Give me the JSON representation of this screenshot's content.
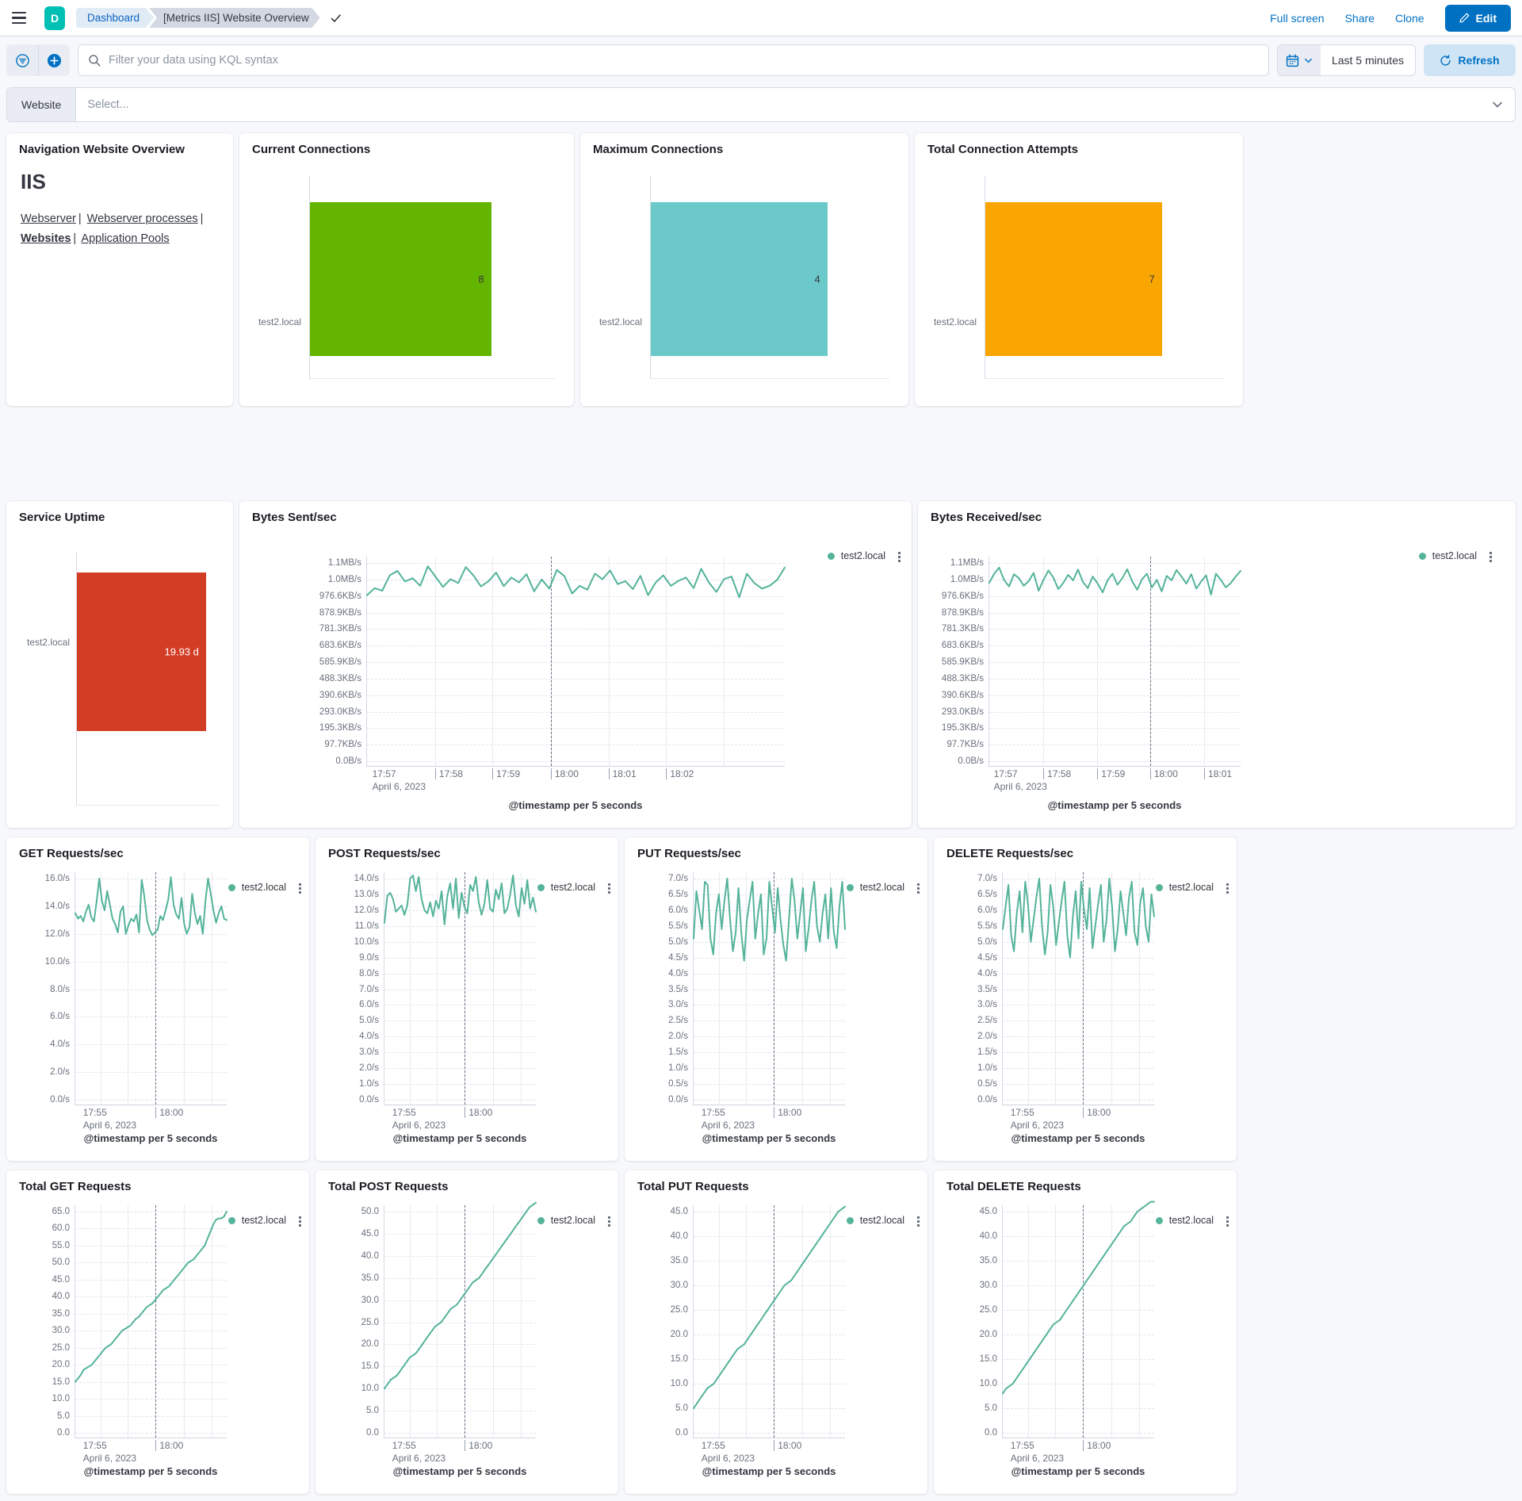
{
  "header": {
    "logo_letter": "D",
    "breadcrumb_dashboard": "Dashboard",
    "breadcrumb_page": "[Metrics IIS] Website Overview",
    "link_fullscreen": "Full screen",
    "link_share": "Share",
    "link_clone": "Clone",
    "edit_label": "Edit"
  },
  "filter_bar": {
    "kql_placeholder": "Filter your data using KQL syntax",
    "time_range": "Last 5 minutes",
    "refresh_label": "Refresh"
  },
  "website_selector": {
    "label": "Website",
    "placeholder": "Select..."
  },
  "nav_panel": {
    "title": "Navigation Website Overview",
    "heading": "IIS",
    "link_webserver": "Webserver",
    "link_webserver_processes": "Webserver processes",
    "link_websites": "Websites",
    "link_application_pools": "Application Pools"
  },
  "bar_panels": [
    {
      "title": "Current Connections",
      "label": "test2.local",
      "value": "8",
      "color": "#64b500"
    },
    {
      "title": "Maximum Connections",
      "label": "test2.local",
      "value": "4",
      "color": "#6bc9c9"
    },
    {
      "title": "Total Connection Attempts",
      "label": "test2.local",
      "value": "7",
      "color": "#f9a602"
    }
  ],
  "uptime_panel": {
    "title": "Service Uptime",
    "label": "test2.local",
    "value": "19.93 d",
    "color": "#d43d25"
  },
  "chart_data": [
    {
      "type": "line",
      "title": "Bytes Sent/sec",
      "legend": "test2.local",
      "color": "#54b399",
      "ylabel": "",
      "xlabel": "@timestamp per 5 seconds",
      "x_title": "@timestamp per 5 seconds",
      "x_date": "April 6, 2023",
      "y_ticks": [
        "1.1MB/s",
        "1.0MB/s",
        "976.6KB/s",
        "878.9KB/s",
        "781.3KB/s",
        "683.6KB/s",
        "585.9KB/s",
        "488.3KB/s",
        "390.6KB/s",
        "293.0KB/s",
        "195.3KB/s",
        "97.7KB/s",
        "0.0B/s"
      ],
      "y_top_value": 1200000,
      "x_labels": [
        {
          "t": "17:57",
          "f": 0.005
        },
        {
          "t": "17:58",
          "f": 0.163
        },
        {
          "t": "17:59",
          "f": 0.3
        },
        {
          "t": "18:00",
          "f": 0.44
        },
        {
          "t": "18:01",
          "f": 0.578
        },
        {
          "t": "18:02",
          "f": 0.716
        }
      ],
      "x_gridlines": [
        0.163,
        0.3,
        0.44,
        0.578,
        0.716,
        0.854
      ],
      "annotation_f": 0.44,
      "values": [
        1005000,
        1048000,
        1032000,
        1125000,
        1152000,
        1088000,
        1108000,
        1062000,
        1180000,
        1118000,
        1055000,
        1102000,
        1078000,
        1175000,
        1125000,
        1058000,
        1090000,
        1142000,
        1060000,
        1112000,
        1082000,
        1132000,
        1028000,
        1100000,
        1045000,
        1158000,
        1120000,
        1015000,
        1062000,
        1038000,
        1135000,
        1102000,
        1155000,
        1072000,
        1090000,
        1042000,
        1122000,
        1005000,
        1082000,
        1125000,
        1062000,
        1092000,
        1112000,
        1048000,
        1165000,
        1082000,
        1025000,
        1102000,
        1118000,
        992000,
        1135000,
        1078000,
        1045000,
        1062000,
        1098000,
        1172000
      ]
    },
    {
      "type": "line",
      "title": "Bytes Received/sec",
      "legend": "test2.local",
      "color": "#54b399",
      "ylabel": "",
      "xlabel": "@timestamp per 5 seconds",
      "x_title": "@timestamp per 5 seconds",
      "x_date": "April 6, 2023",
      "y_ticks": [
        "1.1MB/s",
        "1.0MB/s",
        "976.6KB/s",
        "878.9KB/s",
        "781.3KB/s",
        "683.6KB/s",
        "585.9KB/s",
        "488.3KB/s",
        "390.6KB/s",
        "293.0KB/s",
        "195.3KB/s",
        "97.7KB/s",
        "0.0B/s"
      ],
      "y_top_value": 1200000,
      "x_labels": [
        {
          "t": "17:57",
          "f": 0.005
        },
        {
          "t": "17:58",
          "f": 0.215
        },
        {
          "t": "17:59",
          "f": 0.43
        },
        {
          "t": "18:00",
          "f": 0.64
        },
        {
          "t": "18:01",
          "f": 0.855
        }
      ],
      "x_gridlines": [
        0.215,
        0.43,
        0.64,
        0.855
      ],
      "annotation_f": 0.64,
      "values": [
        1080000,
        1135000,
        1172000,
        1098000,
        1058000,
        1132000,
        1108000,
        1062000,
        1090000,
        1140000,
        1032000,
        1098000,
        1155000,
        1112000,
        1042000,
        1078000,
        1128000,
        1095000,
        1160000,
        1085000,
        1048000,
        1118000,
        1075000,
        1022000,
        1095000,
        1135000,
        1068000,
        1108000,
        1162000,
        1088000,
        1038000,
        1102000,
        1135000,
        1052000,
        1098000,
        1028000,
        1122000,
        1095000,
        1158000,
        1118000,
        1075000,
        1132000,
        1045000,
        1088000,
        1125000,
        1008000,
        1135000,
        1098000,
        1052000,
        1078000,
        1118000,
        1152000
      ]
    },
    {
      "type": "line",
      "title": "GET Requests/sec",
      "legend": "test2.local",
      "color": "#54b399",
      "ylabel": "",
      "xlabel": "@timestamp per 5 seconds",
      "x_title": "@timestamp per 5 seconds",
      "x_date": "April 6, 2023",
      "y_ticks": [
        "16.0/s",
        "14.0/s",
        "12.0/s",
        "10.0/s",
        "8.0/s",
        "6.0/s",
        "4.0/s",
        "2.0/s",
        "0.0/s"
      ],
      "y_top_value": 16,
      "x_labels": [
        {
          "t": "17:55",
          "f": 0.03
        },
        {
          "t": "18:00",
          "f": 0.53
        }
      ],
      "x_gridlines": [
        0.165,
        0.345,
        0.53,
        0.715,
        0.9
      ],
      "annotation_f": 0.53,
      "values": [
        13.5,
        13.1,
        13.3,
        12.9,
        13.6,
        14.1,
        13.2,
        12.9,
        14.3,
        16.0,
        14.4,
        13.7,
        15.1,
        14.1,
        13.1,
        12.7,
        12.1,
        13.6,
        14.0,
        12.0,
        12.6,
        13.1,
        12.9,
        13.4,
        12.1,
        15.9,
        14.7,
        13.0,
        12.3,
        11.9,
        12.1,
        12.3,
        13.3,
        13.0,
        13.7,
        14.5,
        16.1,
        14.1,
        13.4,
        13.1,
        14.6,
        12.7,
        12.0,
        12.5,
        14.9,
        13.5,
        12.7,
        13.3,
        12.0,
        14.4,
        16.0,
        14.9,
        13.7,
        12.8,
        13.5,
        14.0,
        13.1,
        13.0
      ]
    },
    {
      "type": "line",
      "title": "POST Requests/sec",
      "legend": "test2.local",
      "color": "#54b399",
      "ylabel": "",
      "xlabel": "@timestamp per 5 seconds",
      "x_title": "@timestamp per 5 seconds",
      "x_date": "April 6, 2023",
      "y_ticks": [
        "14.0/s",
        "13.0/s",
        "12.0/s",
        "11.0/s",
        "10.0/s",
        "9.0/s",
        "8.0/s",
        "7.0/s",
        "6.0/s",
        "5.0/s",
        "4.0/s",
        "3.0/s",
        "2.0/s",
        "1.0/s",
        "0.0/s"
      ],
      "y_top_value": 14,
      "x_labels": [
        {
          "t": "17:55",
          "f": 0.03
        },
        {
          "t": "18:00",
          "f": 0.53
        }
      ],
      "x_gridlines": [
        0.165,
        0.345,
        0.53,
        0.715,
        0.9
      ],
      "annotation_f": 0.53,
      "values": [
        11.2,
        12.9,
        13.1,
        12.7,
        11.9,
        12.1,
        12.3,
        11.7,
        12.3,
        14.0,
        14.2,
        13.2,
        14.1,
        12.7,
        12.0,
        11.8,
        12.5,
        11.6,
        12.6,
        12.1,
        13.2,
        11.1,
        12.9,
        13.7,
        12.1,
        14.0,
        11.5,
        13.1,
        12.2,
        11.8,
        13.6,
        13.2,
        14.1,
        12.5,
        11.7,
        12.4,
        13.9,
        12.1,
        11.9,
        13.3,
        12.7,
        13.7,
        11.8,
        12.1,
        13.0,
        14.2,
        12.3,
        11.6,
        13.4,
        12.4,
        13.9,
        12.1,
        12.8,
        11.9
      ]
    },
    {
      "type": "line",
      "title": "PUT Requests/sec",
      "legend": "test2.local",
      "color": "#54b399",
      "ylabel": "",
      "xlabel": "@timestamp per 5 seconds",
      "x_title": "@timestamp per 5 seconds",
      "x_date": "April 6, 2023",
      "y_ticks": [
        "7.0/s",
        "6.5/s",
        "6.0/s",
        "5.5/s",
        "5.0/s",
        "4.5/s",
        "4.0/s",
        "3.5/s",
        "3.0/s",
        "2.5/s",
        "2.0/s",
        "1.5/s",
        "1.0/s",
        "0.5/s",
        "0.0/s"
      ],
      "y_top_value": 7,
      "x_labels": [
        {
          "t": "17:55",
          "f": 0.03
        },
        {
          "t": "18:00",
          "f": 0.53
        }
      ],
      "x_gridlines": [
        0.165,
        0.345,
        0.53,
        0.715,
        0.9
      ],
      "annotation_f": 0.53,
      "values": [
        5.1,
        6.6,
        6.0,
        5.4,
        6.9,
        6.8,
        5.1,
        4.6,
        5.9,
        6.5,
        5.4,
        6.3,
        7.0,
        5.7,
        4.7,
        5.3,
        6.7,
        5.3,
        4.4,
        5.7,
        6.3,
        6.9,
        5.1,
        5.9,
        6.5,
        4.6,
        5.1,
        6.9,
        6.1,
        5.3,
        6.7,
        5.7,
        4.9,
        4.4,
        5.7,
        7.0,
        6.3,
        5.1,
        5.9,
        6.7,
        4.7,
        5.4,
        6.3,
        6.9,
        5.5,
        5.0,
        5.9,
        6.5,
        5.1,
        6.7,
        5.3,
        4.8,
        6.1,
        6.9,
        5.4
      ]
    },
    {
      "type": "line",
      "title": "DELETE Requests/sec",
      "legend": "test2.local",
      "color": "#54b399",
      "ylabel": "",
      "xlabel": "@timestamp per 5 seconds",
      "x_title": "@timestamp per 5 seconds",
      "x_date": "April 6, 2023",
      "y_ticks": [
        "7.0/s",
        "6.5/s",
        "6.0/s",
        "5.5/s",
        "5.0/s",
        "4.5/s",
        "4.0/s",
        "3.5/s",
        "3.0/s",
        "2.5/s",
        "2.0/s",
        "1.5/s",
        "1.0/s",
        "0.5/s",
        "0.0/s"
      ],
      "y_top_value": 7,
      "x_labels": [
        {
          "t": "17:55",
          "f": 0.03
        },
        {
          "t": "18:00",
          "f": 0.53
        }
      ],
      "x_gridlines": [
        0.165,
        0.345,
        0.53,
        0.715,
        0.9
      ],
      "annotation_f": 0.53,
      "values": [
        5.4,
        6.1,
        6.8,
        5.2,
        4.7,
        5.9,
        6.6,
        5.3,
        6.9,
        6.2,
        5.0,
        5.7,
        6.4,
        7.0,
        5.5,
        4.6,
        5.3,
        6.8,
        6.1,
        4.9,
        5.6,
        6.3,
        6.9,
        5.2,
        4.5,
        5.8,
        6.6,
        5.1,
        6.9,
        6.0,
        5.4,
        6.7,
        4.8,
        5.5,
        6.2,
        6.8,
        5.0,
        5.7,
        7.0,
        6.1,
        4.7,
        5.4,
        6.6,
        5.9,
        5.2,
        6.4,
        6.9,
        5.3,
        4.9,
        6.2,
        6.7,
        5.5,
        5.0,
        6.5,
        5.8
      ]
    },
    {
      "type": "line",
      "title": "Total GET Requests",
      "legend": "test2.local",
      "color": "#54b399",
      "ylabel": "",
      "xlabel": "@timestamp per 5 seconds",
      "x_title": "@timestamp per 5 seconds",
      "x_date": "April 6, 2023",
      "y_ticks": [
        "65.0",
        "60.0",
        "55.0",
        "50.0",
        "45.0",
        "40.0",
        "35.0",
        "30.0",
        "25.0",
        "20.0",
        "15.0",
        "10.0",
        "5.0",
        "0.0"
      ],
      "y_top_value": 65,
      "x_labels": [
        {
          "t": "17:55",
          "f": 0.03
        },
        {
          "t": "18:00",
          "f": 0.53
        }
      ],
      "x_gridlines": [
        0.165,
        0.345,
        0.53,
        0.715,
        0.9
      ],
      "annotation_f": 0.53,
      "values": [
        15,
        16,
        17,
        18.5,
        19,
        19.5,
        20,
        21,
        22,
        23,
        24,
        25,
        25.5,
        26,
        27,
        28,
        29,
        30,
        30.5,
        31,
        31.5,
        32.5,
        33.5,
        34,
        35,
        36,
        37,
        37.5,
        38,
        39,
        40,
        41,
        42,
        42.5,
        43,
        44,
        45,
        46,
        47,
        48,
        49,
        50,
        50.5,
        51,
        52,
        53,
        54,
        55,
        57,
        59,
        61,
        62.5,
        63,
        63,
        63.5,
        65
      ]
    },
    {
      "type": "line",
      "title": "Total POST Requests",
      "legend": "test2.local",
      "color": "#54b399",
      "ylabel": "",
      "xlabel": "@timestamp per 5 seconds",
      "x_title": "@timestamp per 5 seconds",
      "x_date": "April 6, 2023",
      "y_ticks": [
        "50.0",
        "45.0",
        "40.0",
        "35.0",
        "30.0",
        "25.0",
        "20.0",
        "15.0",
        "10.0",
        "5.0",
        "0.0"
      ],
      "y_top_value": 50,
      "x_labels": [
        {
          "t": "17:55",
          "f": 0.03
        },
        {
          "t": "18:00",
          "f": 0.53
        }
      ],
      "x_gridlines": [
        0.165,
        0.345,
        0.53,
        0.715,
        0.9
      ],
      "annotation_f": 0.53,
      "values": [
        10,
        11,
        12,
        12.5,
        13,
        14,
        15,
        16,
        17,
        17.5,
        18,
        19,
        20,
        21,
        22,
        23,
        24,
        24.5,
        25,
        26,
        27,
        28,
        28.5,
        29,
        30,
        31,
        32,
        33,
        34,
        34.5,
        35,
        36,
        37,
        38,
        39,
        40,
        41,
        42,
        43,
        44,
        45,
        46,
        47,
        48,
        49,
        50,
        51,
        51.5,
        52
      ]
    },
    {
      "type": "line",
      "title": "Total PUT Requests",
      "legend": "test2.local",
      "color": "#54b399",
      "ylabel": "",
      "xlabel": "@timestamp per 5 seconds",
      "x_title": "@timestamp per 5 seconds",
      "x_date": "April 6, 2023",
      "y_ticks": [
        "45.0",
        "40.0",
        "35.0",
        "30.0",
        "25.0",
        "20.0",
        "15.0",
        "10.0",
        "5.0",
        "0.0"
      ],
      "y_top_value": 45,
      "x_labels": [
        {
          "t": "17:55",
          "f": 0.03
        },
        {
          "t": "18:00",
          "f": 0.53
        }
      ],
      "x_gridlines": [
        0.165,
        0.345,
        0.53,
        0.715,
        0.9
      ],
      "annotation_f": 0.53,
      "values": [
        5,
        6,
        7,
        8,
        9,
        9.5,
        10,
        11,
        12,
        13,
        14,
        15,
        16,
        17,
        17.5,
        18,
        19,
        20,
        21,
        22,
        23,
        24,
        25,
        26,
        27,
        28,
        29,
        30,
        30.5,
        31,
        32,
        33,
        34,
        35,
        36,
        37,
        38,
        39,
        40,
        41,
        42,
        43,
        44,
        45,
        45.5,
        46
      ]
    },
    {
      "type": "line",
      "title": "Total DELETE Requests",
      "legend": "test2.local",
      "color": "#54b399",
      "ylabel": "",
      "xlabel": "@timestamp per 5 seconds",
      "x_title": "@timestamp per 5 seconds",
      "x_date": "April 6, 2023",
      "y_ticks": [
        "45.0",
        "40.0",
        "35.0",
        "30.0",
        "25.0",
        "20.0",
        "15.0",
        "10.0",
        "5.0",
        "0.0"
      ],
      "y_top_value": 45,
      "x_labels": [
        {
          "t": "17:55",
          "f": 0.03
        },
        {
          "t": "18:00",
          "f": 0.53
        }
      ],
      "x_gridlines": [
        0.165,
        0.345,
        0.53,
        0.715,
        0.9
      ],
      "annotation_f": 0.53,
      "values": [
        8,
        9,
        9.5,
        10,
        11,
        12,
        13,
        14,
        15,
        16,
        17,
        18,
        19,
        20,
        21,
        22,
        22.5,
        23,
        24,
        25,
        26,
        27,
        28,
        29,
        30,
        31,
        32,
        33,
        34,
        35,
        36,
        37,
        38,
        39,
        40,
        41,
        42,
        42.5,
        43,
        44,
        45,
        45.5,
        46,
        46.5,
        47,
        47
      ]
    }
  ]
}
